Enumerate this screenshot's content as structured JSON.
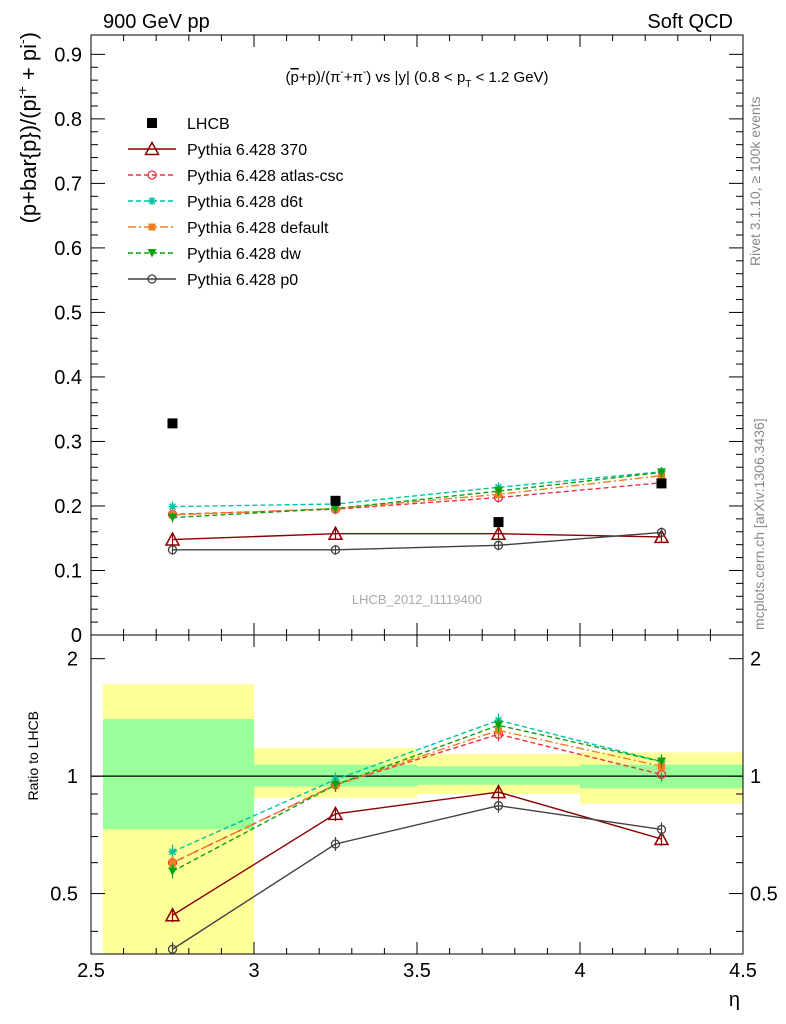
{
  "header": {
    "left": "900 GeV pp",
    "right": "Soft QCD"
  },
  "side": {
    "rivet": "Rivet 3.1.10, ≥ 100k events",
    "mcplots": "mcplots.cern.ch [arXiv:1306.3436]"
  },
  "watermark": "LHCB_2012_I1119400",
  "chart_data": [
    {
      "type": "scatter",
      "title": "(p̄+p)/(π⁻+π⁺) vs |y| (0.8 < p_T < 1.2 GeV)",
      "ylabel": "(p+bar{p})/(pi⁺ + pi⁻)",
      "xlim": [
        2.5,
        4.5
      ],
      "ylim": [
        0,
        0.93
      ],
      "yticks": [
        "0.1",
        "0.2",
        "0.3",
        "0.4",
        "0.5",
        "0.6",
        "0.7",
        "0.8",
        "0.9"
      ],
      "x": [
        2.75,
        3.25,
        3.75,
        4.25
      ],
      "data": {
        "name": "LHCB",
        "values": [
          0.328,
          0.208,
          0.175,
          0.235
        ]
      },
      "series": [
        {
          "name": "Pythia 6.428 370",
          "values": [
            0.148,
            0.157,
            0.157,
            0.152
          ],
          "color": "#8b0000",
          "marker": "triangle-open",
          "dash": ""
        },
        {
          "name": "Pythia 6.428 atlas-csc",
          "values": [
            0.187,
            0.195,
            0.213,
            0.236
          ],
          "color": "#ee3344",
          "marker": "circle-open",
          "dash": "5,3"
        },
        {
          "name": "Pythia 6.428 d6t",
          "values": [
            0.199,
            0.203,
            0.229,
            0.253
          ],
          "color": "#00c3a0",
          "marker": "star",
          "dash": "5,3"
        },
        {
          "name": "Pythia 6.428 default",
          "values": [
            0.186,
            0.196,
            0.218,
            0.247
          ],
          "color": "#f07f20",
          "marker": "square",
          "dash": "8,3,2,3"
        },
        {
          "name": "Pythia 6.428 dw",
          "values": [
            0.182,
            0.196,
            0.223,
            0.252
          ],
          "color": "#10a010",
          "marker": "triangle-down",
          "dash": "5,3"
        },
        {
          "name": "Pythia 6.428 p0",
          "values": [
            0.132,
            0.132,
            0.139,
            0.159
          ],
          "color": "#404040",
          "marker": "circle-open",
          "dash": ""
        }
      ]
    },
    {
      "type": "line",
      "ylabel": "Ratio to LHCB",
      "xlabel": "η",
      "xlim": [
        2.5,
        4.5
      ],
      "ylim": [
        0.35,
        2.3
      ],
      "xticks": [
        "2.5",
        "3",
        "3.5",
        "4",
        "4.5"
      ],
      "yticks": [
        "0.5",
        "1",
        "2"
      ],
      "x": [
        2.75,
        3.25,
        3.75,
        4.25
      ],
      "bands": {
        "bins": [
          [
            2.5,
            3.0
          ],
          [
            3.0,
            3.5
          ],
          [
            3.5,
            4.0
          ],
          [
            4.0,
            4.5
          ]
        ],
        "stat": [
          [
            0.73,
            1.4
          ],
          [
            0.94,
            1.07
          ],
          [
            0.95,
            1.06
          ],
          [
            0.93,
            1.07
          ]
        ],
        "total": [
          [
            0.35,
            1.72
          ],
          [
            0.88,
            1.18
          ],
          [
            0.9,
            1.14
          ],
          [
            0.85,
            1.15
          ]
        ]
      },
      "series": [
        {
          "name": "Pythia 6.428 370",
          "values": [
            0.44,
            0.8,
            0.91,
            0.69
          ]
        },
        {
          "name": "Pythia 6.428 atlas-csc",
          "values": [
            0.6,
            0.95,
            1.28,
            1.01
          ]
        },
        {
          "name": "Pythia 6.428 d6t",
          "values": [
            0.64,
            0.98,
            1.39,
            1.09
          ]
        },
        {
          "name": "Pythia 6.428 default",
          "values": [
            0.6,
            0.95,
            1.31,
            1.06
          ]
        },
        {
          "name": "Pythia 6.428 dw",
          "values": [
            0.57,
            0.95,
            1.35,
            1.09
          ]
        },
        {
          "name": "Pythia 6.428 p0",
          "values": [
            0.36,
            0.67,
            0.84,
            0.73
          ]
        }
      ]
    }
  ]
}
